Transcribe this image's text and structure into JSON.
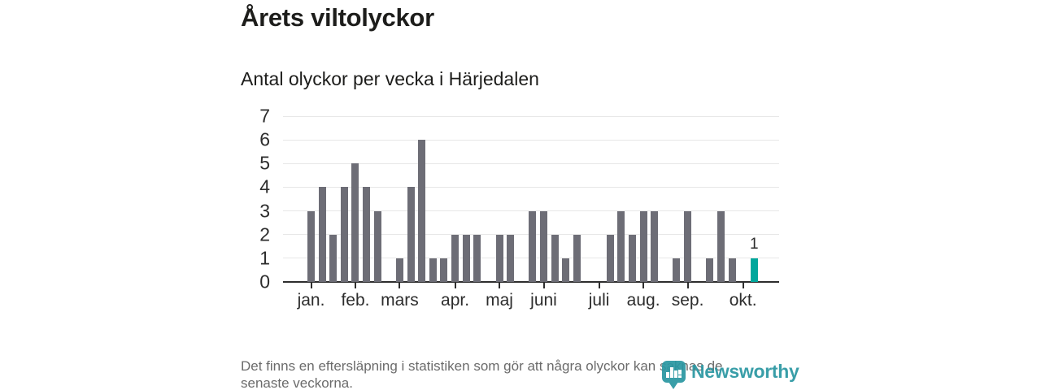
{
  "title": "Årets viltolyckor",
  "subtitle": "Antal olyckor per vecka i Härjedalen",
  "footnote": {
    "line1": "Det finns en eftersläpning i statistiken som gör att några olyckor kan saknas de",
    "line2": "senaste veckorna."
  },
  "logo": {
    "name": "Newsworthy"
  },
  "colors": {
    "text_dark": "#1d1d1b",
    "footnote_gray": "#6b6b6b",
    "logo_teal": "#2b97a2"
  },
  "chart_data": {
    "type": "bar",
    "title": "Årets viltolyckor",
    "subtitle": "Antal olyckor per vecka i Härjedalen",
    "x_unit": "week of year, jan–okt",
    "ylim": [
      0,
      7
    ],
    "y_ticks": [
      0,
      1,
      2,
      3,
      4,
      5,
      6,
      7
    ],
    "grid": true,
    "values_by_week": [
      3,
      4,
      2,
      4,
      5,
      4,
      3,
      0,
      1,
      4,
      6,
      1,
      1,
      2,
      2,
      2,
      0,
      2,
      2,
      0,
      3,
      3,
      2,
      1,
      2,
      0,
      0,
      2,
      3,
      2,
      3,
      3,
      0,
      1,
      3,
      0,
      1,
      3,
      1,
      0,
      1
    ],
    "month_ticks": [
      {
        "label": "jan.",
        "slot": 1
      },
      {
        "label": "feb.",
        "slot": 5
      },
      {
        "label": "mars",
        "slot": 9
      },
      {
        "label": "apr.",
        "slot": 14
      },
      {
        "label": "maj",
        "slot": 18
      },
      {
        "label": "juni",
        "slot": 22
      },
      {
        "label": "juli",
        "slot": 27
      },
      {
        "label": "aug.",
        "slot": 31
      },
      {
        "label": "sep.",
        "slot": 35
      },
      {
        "label": "okt.",
        "slot": 40
      }
    ],
    "highlight": {
      "slot": 41,
      "value": 1,
      "label": "1"
    },
    "colors": {
      "bar": "#6d6d76",
      "highlight": "#00a79c",
      "grid": "#e7e7e7",
      "axis": "#2e2e2e",
      "tick_text": "#2d2d2d"
    }
  }
}
